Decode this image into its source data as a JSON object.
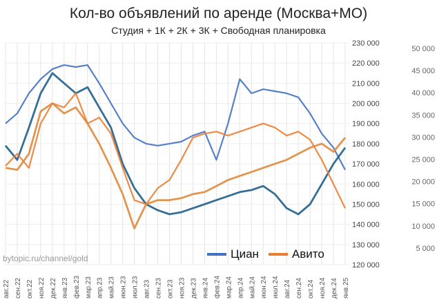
{
  "chart_data": {
    "type": "line",
    "title": "Кол-во объявлений по аренде (Москва+МО)",
    "subtitle": "Студия + 1К + 2К + 3К + Свободная планировка",
    "watermark": "bytopic.ru/channel/gold",
    "x": [
      "авг.22",
      "сен.22",
      "окт.22",
      "ноя.22",
      "дек.22",
      "янв.23",
      "фев.23",
      "мар.23",
      "апр.23",
      "май.23",
      "июн.23",
      "июл.23",
      "авг.23",
      "сен.23",
      "окт.23",
      "ноя.23",
      "дек.23",
      "янв.24",
      "фев.24",
      "мар.24",
      "апр.24",
      "май.24",
      "июн.24",
      "июл.24",
      "авг.24",
      "сен.24",
      "окт.24",
      "ноя.24",
      "дек.24",
      "янв.25"
    ],
    "yaxis_right": {
      "ticks": [
        "120 000",
        "130 000",
        "140 000",
        "150 000",
        "160 000",
        "170 000",
        "180 000",
        "190 000",
        "200 000",
        "210 000",
        "220 000",
        "230 000"
      ],
      "ylim": [
        120000,
        230000
      ]
    },
    "yaxis_secondary": {
      "ticks": [
        "5 000",
        "10 000",
        "15 000",
        "20 000",
        "25 000",
        "30 000",
        "35 000",
        "40 000",
        "45 000",
        "50 000"
      ]
    },
    "legend_position": "bottom-right",
    "series": [
      {
        "name": "Циан",
        "color": "#4472c4",
        "width": 2.2,
        "values": [
          190,
          195,
          205,
          212,
          217,
          219,
          218,
          219,
          210,
          200,
          190,
          183,
          180,
          179,
          180,
          181,
          184,
          186,
          172,
          190,
          212,
          205,
          207,
          206,
          205,
          203,
          195,
          185,
          178,
          167
        ]
      },
      {
        "name": "Циан",
        "color": "#1f5f8b",
        "width": 2.8,
        "values": [
          179,
          172,
          188,
          205,
          215,
          210,
          205,
          208,
          198,
          188,
          170,
          158,
          150,
          147,
          145,
          146,
          148,
          150,
          152,
          154,
          156,
          157,
          159,
          155,
          148,
          145,
          150,
          160,
          170,
          178
        ]
      },
      {
        "name": "Авито",
        "color": "#ed7d31",
        "width": 2.2,
        "values": [
          169,
          175,
          168,
          190,
          200,
          198,
          205,
          190,
          193,
          185,
          168,
          152,
          150,
          158,
          162,
          172,
          183,
          185,
          186,
          184,
          186,
          188,
          190,
          188,
          184,
          186,
          182,
          172,
          160,
          148
        ]
      },
      {
        "name": "Авито",
        "color": "#e08a3c",
        "width": 2.8,
        "values": [
          168,
          167,
          175,
          196,
          200,
          195,
          198,
          190,
          180,
          168,
          155,
          138,
          150,
          152,
          152,
          153,
          155,
          156,
          159,
          162,
          164,
          166,
          168,
          170,
          172,
          175,
          178,
          180,
          176,
          183
        ]
      }
    ],
    "value_unit_multiplier": 1000
  }
}
